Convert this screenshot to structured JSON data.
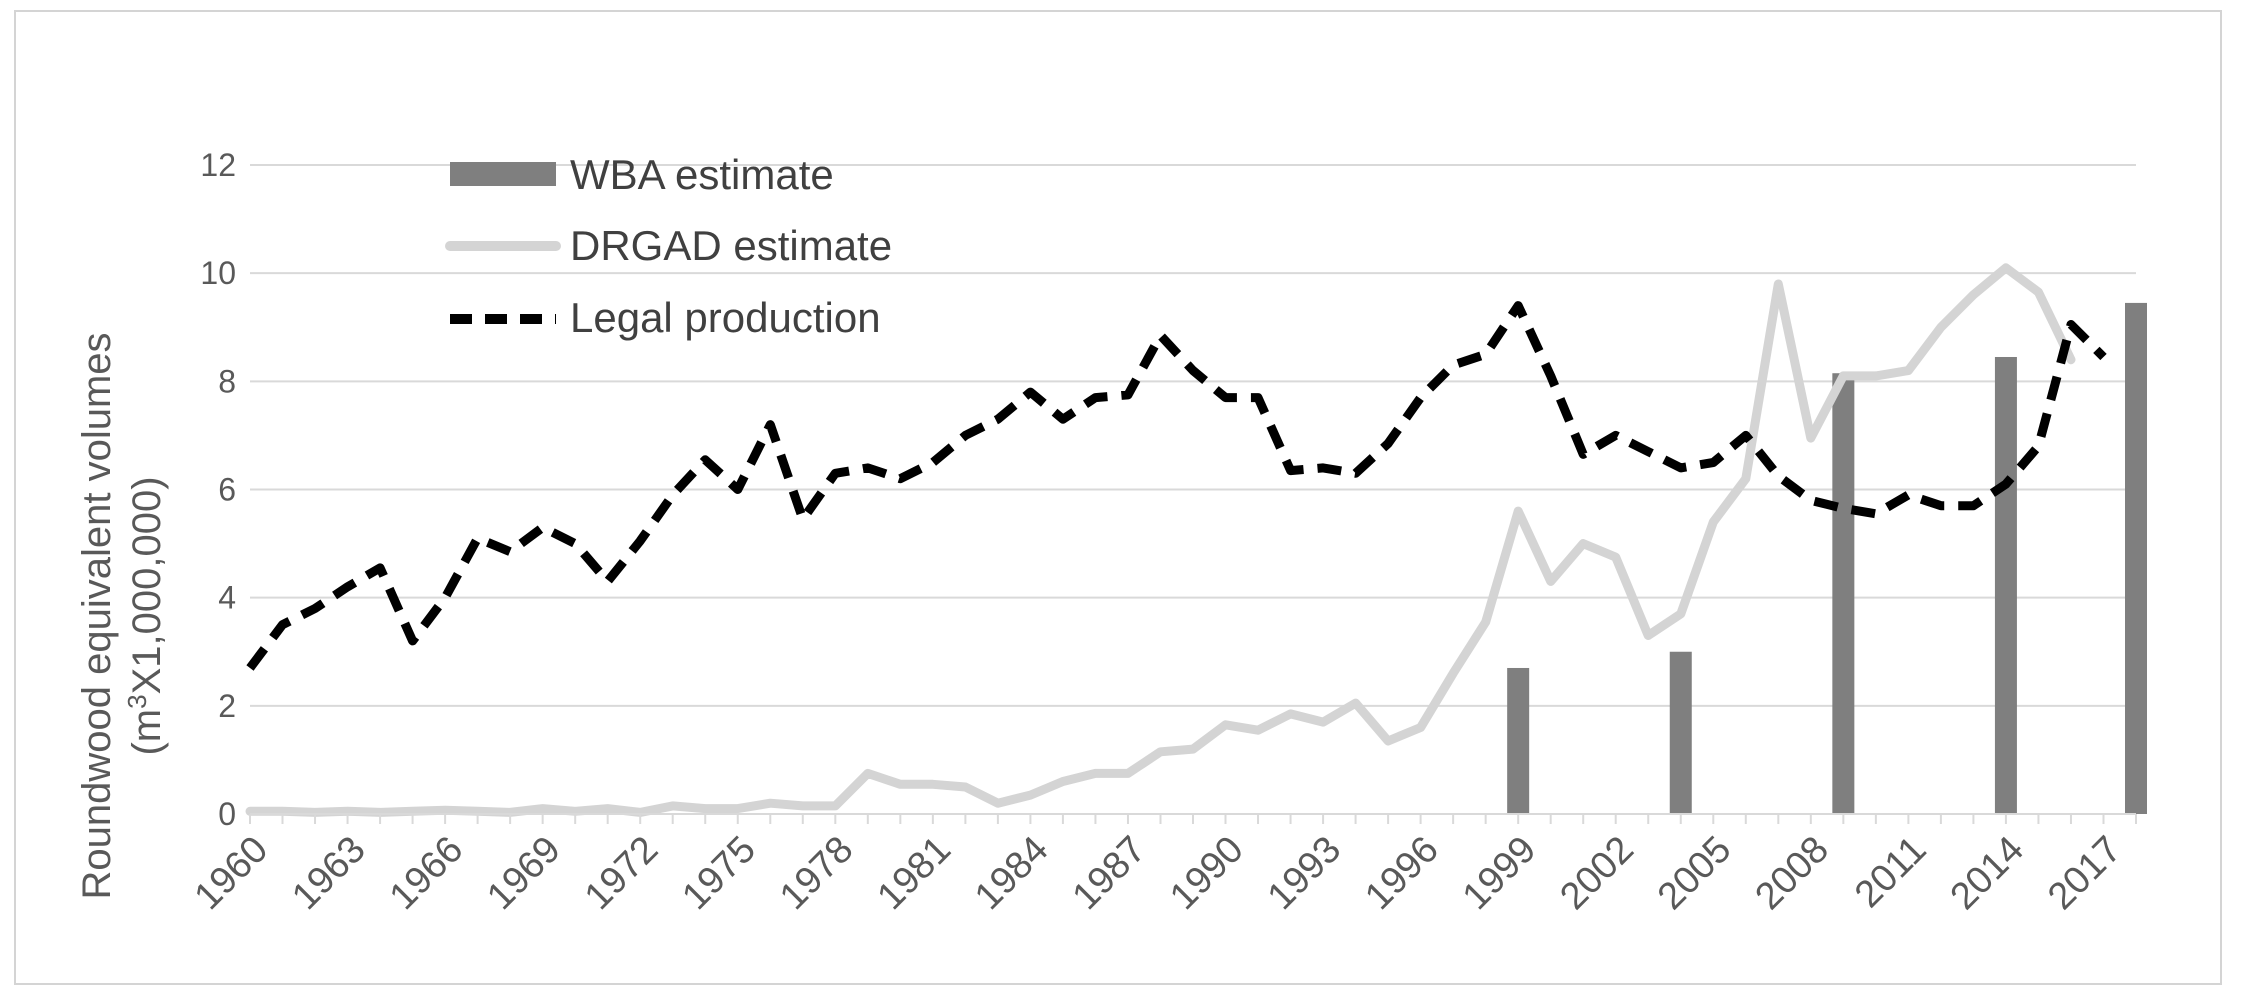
{
  "chart_data": {
    "type": "bar+line",
    "title": "",
    "xlabel": "",
    "ylabel": {
      "line1": "Roundwood equivalent volumes",
      "line2_prefix": "(m",
      "line2_sup": "3",
      "line2_suffix": "X1,000,000)"
    },
    "ylim": [
      0,
      12
    ],
    "yticks": [
      "0",
      "2",
      "4",
      "6",
      "8",
      "10",
      "12"
    ],
    "x_range": [
      1960,
      2018
    ],
    "xtick_labels": [
      "1960",
      "1963",
      "1966",
      "1969",
      "1972",
      "1975",
      "1978",
      "1981",
      "1984",
      "1987",
      "1990",
      "1993",
      "1996",
      "1999",
      "2002",
      "2005",
      "2008",
      "2011",
      "2014",
      "2017"
    ],
    "grid": "horizontal",
    "legend_position": "top-left",
    "series": [
      {
        "name": "WBA estimate",
        "kind": "bar",
        "color": "#7f7f7f",
        "points": [
          [
            1999,
            2.7
          ],
          [
            2004,
            3.0
          ],
          [
            2009,
            8.15
          ],
          [
            2014,
            8.45
          ],
          [
            2018,
            9.45
          ]
        ]
      },
      {
        "name": "DRGAD estimate",
        "kind": "line",
        "color": "#d4d4d4",
        "points": [
          [
            1960,
            0.05
          ],
          [
            1961,
            0.05
          ],
          [
            1962,
            0.03
          ],
          [
            1963,
            0.05
          ],
          [
            1964,
            0.03
          ],
          [
            1965,
            0.05
          ],
          [
            1966,
            0.07
          ],
          [
            1967,
            0.05
          ],
          [
            1968,
            0.03
          ],
          [
            1969,
            0.1
          ],
          [
            1970,
            0.05
          ],
          [
            1971,
            0.1
          ],
          [
            1972,
            0.03
          ],
          [
            1973,
            0.15
          ],
          [
            1974,
            0.1
          ],
          [
            1975,
            0.1
          ],
          [
            1976,
            0.2
          ],
          [
            1977,
            0.15
          ],
          [
            1978,
            0.15
          ],
          [
            1979,
            0.75
          ],
          [
            1980,
            0.55
          ],
          [
            1981,
            0.55
          ],
          [
            1982,
            0.5
          ],
          [
            1983,
            0.2
          ],
          [
            1984,
            0.35
          ],
          [
            1985,
            0.6
          ],
          [
            1986,
            0.75
          ],
          [
            1987,
            0.75
          ],
          [
            1988,
            1.15
          ],
          [
            1989,
            1.2
          ],
          [
            1990,
            1.65
          ],
          [
            1991,
            1.55
          ],
          [
            1992,
            1.85
          ],
          [
            1993,
            1.7
          ],
          [
            1994,
            2.05
          ],
          [
            1995,
            1.35
          ],
          [
            1996,
            1.6
          ],
          [
            1997,
            2.6
          ],
          [
            1998,
            3.55
          ],
          [
            1999,
            5.6
          ],
          [
            2000,
            4.3
          ],
          [
            2001,
            5.0
          ],
          [
            2002,
            4.75
          ],
          [
            2003,
            3.3
          ],
          [
            2004,
            3.7
          ],
          [
            2005,
            5.4
          ],
          [
            2006,
            6.2
          ],
          [
            2007,
            9.8
          ],
          [
            2008,
            6.95
          ],
          [
            2009,
            8.1
          ],
          [
            2010,
            8.1
          ],
          [
            2011,
            8.2
          ],
          [
            2012,
            9.0
          ],
          [
            2013,
            9.6
          ],
          [
            2014,
            10.1
          ],
          [
            2015,
            9.65
          ],
          [
            2016,
            8.4
          ]
        ]
      },
      {
        "name": "Legal production",
        "kind": "line-dashed",
        "color": "#000000",
        "points": [
          [
            1960,
            2.7
          ],
          [
            1961,
            3.5
          ],
          [
            1962,
            3.8
          ],
          [
            1963,
            4.2
          ],
          [
            1964,
            4.55
          ],
          [
            1965,
            3.2
          ],
          [
            1966,
            4.0
          ],
          [
            1967,
            5.1
          ],
          [
            1968,
            4.85
          ],
          [
            1969,
            5.3
          ],
          [
            1970,
            5.0
          ],
          [
            1971,
            4.3
          ],
          [
            1972,
            5.05
          ],
          [
            1973,
            5.9
          ],
          [
            1974,
            6.55
          ],
          [
            1975,
            6.0
          ],
          [
            1976,
            7.2
          ],
          [
            1977,
            5.45
          ],
          [
            1978,
            6.3
          ],
          [
            1979,
            6.4
          ],
          [
            1980,
            6.2
          ],
          [
            1981,
            6.5
          ],
          [
            1982,
            7.0
          ],
          [
            1983,
            7.3
          ],
          [
            1984,
            7.8
          ],
          [
            1985,
            7.3
          ],
          [
            1986,
            7.7
          ],
          [
            1987,
            7.75
          ],
          [
            1988,
            8.85
          ],
          [
            1989,
            8.2
          ],
          [
            1990,
            7.7
          ],
          [
            1991,
            7.7
          ],
          [
            1992,
            6.35
          ],
          [
            1993,
            6.4
          ],
          [
            1994,
            6.3
          ],
          [
            1995,
            6.85
          ],
          [
            1996,
            7.7
          ],
          [
            1997,
            8.3
          ],
          [
            1998,
            8.5
          ],
          [
            1999,
            9.4
          ],
          [
            2000,
            8.1
          ],
          [
            2001,
            6.65
          ],
          [
            2002,
            7.0
          ],
          [
            2003,
            6.7
          ],
          [
            2004,
            6.4
          ],
          [
            2005,
            6.5
          ],
          [
            2006,
            7.0
          ],
          [
            2007,
            6.25
          ],
          [
            2008,
            5.8
          ],
          [
            2009,
            5.65
          ],
          [
            2010,
            5.55
          ],
          [
            2011,
            5.9
          ],
          [
            2012,
            5.7
          ],
          [
            2013,
            5.7
          ],
          [
            2014,
            6.1
          ],
          [
            2015,
            6.8
          ],
          [
            2016,
            9.05
          ],
          [
            2017,
            8.45
          ]
        ]
      }
    ]
  }
}
